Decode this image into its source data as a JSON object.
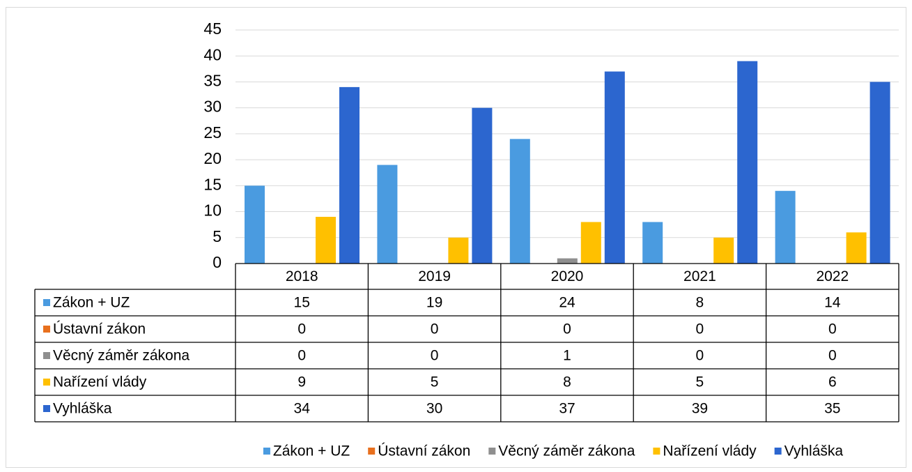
{
  "chart_data": {
    "type": "bar",
    "categories": [
      "2018",
      "2019",
      "2020",
      "2021",
      "2022"
    ],
    "series": [
      {
        "name": "Zákon + UZ",
        "color": "#4a9be0",
        "values": [
          15,
          19,
          24,
          8,
          14
        ]
      },
      {
        "name": "Ústavní zákon",
        "color": "#e8701e",
        "values": [
          0,
          0,
          0,
          0,
          0
        ]
      },
      {
        "name": "Věcný záměr zákona",
        "color": "#8f8f8f",
        "values": [
          0,
          0,
          1,
          0,
          0
        ]
      },
      {
        "name": "Nařízení vlády",
        "color": "#ffc000",
        "values": [
          9,
          5,
          8,
          5,
          6
        ]
      },
      {
        "name": "Vyhláška",
        "color": "#2c66cf",
        "values": [
          34,
          30,
          37,
          39,
          35
        ]
      }
    ],
    "ylim": [
      0,
      45
    ],
    "yticks": [
      0,
      5,
      10,
      15,
      20,
      25,
      30,
      35,
      40,
      45
    ],
    "grid": true
  }
}
